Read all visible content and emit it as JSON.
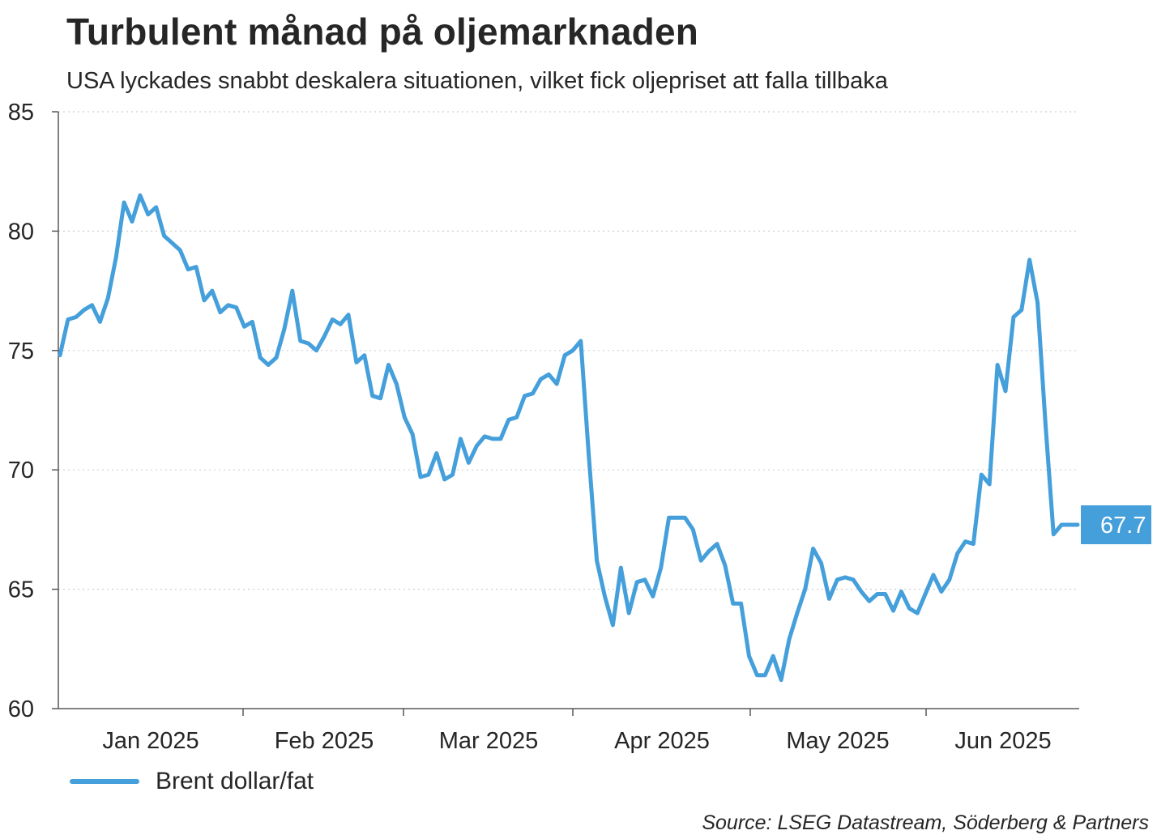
{
  "header": {
    "title": "Turbulent månad på oljemarknaden",
    "subtitle": "USA lyckades snabbt deskalera situationen, vilket fick oljepriset att falla tillbaka"
  },
  "footer": {
    "source": "Source: LSEG Datastream, Söderberg & Partners"
  },
  "chart_data": {
    "type": "line",
    "title": "Turbulent månad på oljemarknaden",
    "subtitle": "USA lyckades snabbt deskalera situationen, vilket fick oljepriset att falla tillbaka",
    "xlabel": "",
    "ylabel": "",
    "ylim": [
      60,
      85
    ],
    "yticks": [
      60,
      65,
      70,
      75,
      80,
      85
    ],
    "grid": "horizontal-dotted",
    "legend_position": "bottom-left",
    "month_labels": [
      "Jan 2025",
      "Feb 2025",
      "Mar 2025",
      "Apr 2025",
      "May 2025",
      "Jun 2025"
    ],
    "end_label": "67.7",
    "colors": {
      "series": "#449fdb",
      "axis": "#595959",
      "grid": "#cfcfcf",
      "text": "#262626"
    },
    "series": [
      {
        "name": "Brent dollar/fat",
        "values": [
          74.8,
          76.3,
          76.4,
          76.7,
          76.9,
          76.2,
          77.2,
          78.9,
          81.2,
          80.4,
          81.5,
          80.7,
          81.0,
          79.8,
          79.5,
          79.2,
          78.4,
          78.5,
          77.1,
          77.5,
          76.6,
          76.9,
          76.8,
          76.0,
          76.2,
          74.7,
          74.4,
          74.7,
          75.9,
          77.5,
          75.4,
          75.3,
          75.0,
          75.6,
          76.3,
          76.1,
          76.5,
          74.5,
          74.8,
          73.1,
          73.0,
          74.4,
          73.6,
          72.2,
          71.5,
          69.7,
          69.8,
          70.7,
          69.6,
          69.8,
          71.3,
          70.3,
          71.0,
          71.4,
          71.3,
          71.3,
          72.1,
          72.2,
          73.1,
          73.2,
          73.8,
          74.0,
          73.6,
          74.8,
          75.0,
          75.4,
          70.6,
          66.2,
          64.7,
          63.5,
          65.9,
          64.0,
          65.3,
          65.4,
          64.7,
          65.9,
          68.0,
          68.0,
          68.0,
          67.5,
          66.2,
          66.6,
          66.9,
          66.0,
          64.4,
          64.4,
          62.2,
          61.4,
          61.4,
          62.2,
          61.2,
          62.9,
          64.0,
          65.0,
          66.7,
          66.1,
          64.6,
          65.4,
          65.5,
          65.4,
          64.9,
          64.5,
          64.8,
          64.8,
          64.1,
          64.9,
          64.2,
          64.0,
          64.8,
          65.6,
          64.9,
          65.4,
          66.5,
          67.0,
          66.9,
          69.8,
          69.4,
          74.4,
          73.3,
          76.4,
          76.7,
          78.8,
          77.0,
          71.9,
          67.3,
          67.7,
          67.7,
          67.7
        ]
      }
    ]
  }
}
